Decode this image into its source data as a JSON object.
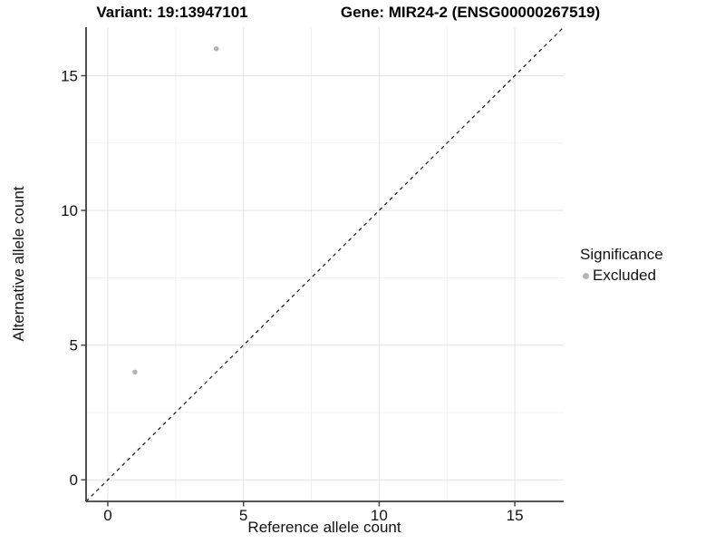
{
  "chart_data": {
    "type": "scatter",
    "title_left": "Variant: 19:13947101",
    "title_right": "Gene: MIR24-2 (ENSG00000267519)",
    "xlabel": "Reference allele count",
    "ylabel": "Alternative allele count",
    "xlim": [
      -0.8,
      16.8
    ],
    "ylim": [
      -0.8,
      16.8
    ],
    "xticks": [
      0,
      5,
      10,
      15
    ],
    "yticks": [
      0,
      5,
      10,
      15
    ],
    "xticks_minor": [
      2.5,
      7.5,
      12.5
    ],
    "yticks_minor": [
      2.5,
      7.5,
      12.5
    ],
    "grid": true,
    "points": [
      {
        "x": 1,
        "y": 4,
        "significance": "Excluded"
      },
      {
        "x": 4,
        "y": 16,
        "significance": "Excluded"
      }
    ],
    "abline": {
      "slope": 1,
      "intercept": 0,
      "style": "dashed"
    },
    "legend": {
      "position": "right",
      "title": "Significance",
      "items": [
        {
          "label": "Excluded",
          "color": "#b5b5b5"
        }
      ]
    },
    "colors": {
      "point": "#b5b5b5",
      "grid_major": "#e3e3e3",
      "grid_minor": "#f0f0f0",
      "axis_line": "#3c3c3c",
      "tick_label": "#111111",
      "dashed_line": "#111111",
      "background": "#ffffff"
    }
  }
}
